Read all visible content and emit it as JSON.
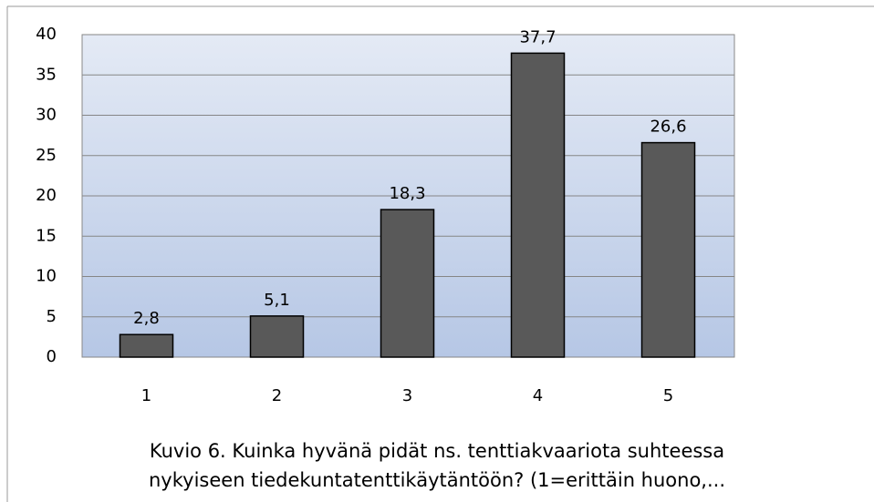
{
  "chart_data": {
    "type": "bar",
    "title_lines": [
      "Kuvio 6. Kuinka hyvänä pidät ns. tenttiakvaariota suhteessa",
      "nykyiseen tiedekuntatenttikäytäntöön? (1=erittäin huono,..."
    ],
    "categories": [
      "1",
      "2",
      "3",
      "4",
      "5"
    ],
    "values": [
      2.8,
      5.1,
      18.3,
      37.7,
      26.6
    ],
    "value_labels": [
      "2,8",
      "5,1",
      "18,3",
      "37,7",
      "26,6"
    ],
    "color": "#595959",
    "ylim": [
      0,
      40
    ],
    "yticks": [
      0,
      5,
      10,
      15,
      20,
      25,
      30,
      35,
      40
    ],
    "grid": true
  }
}
